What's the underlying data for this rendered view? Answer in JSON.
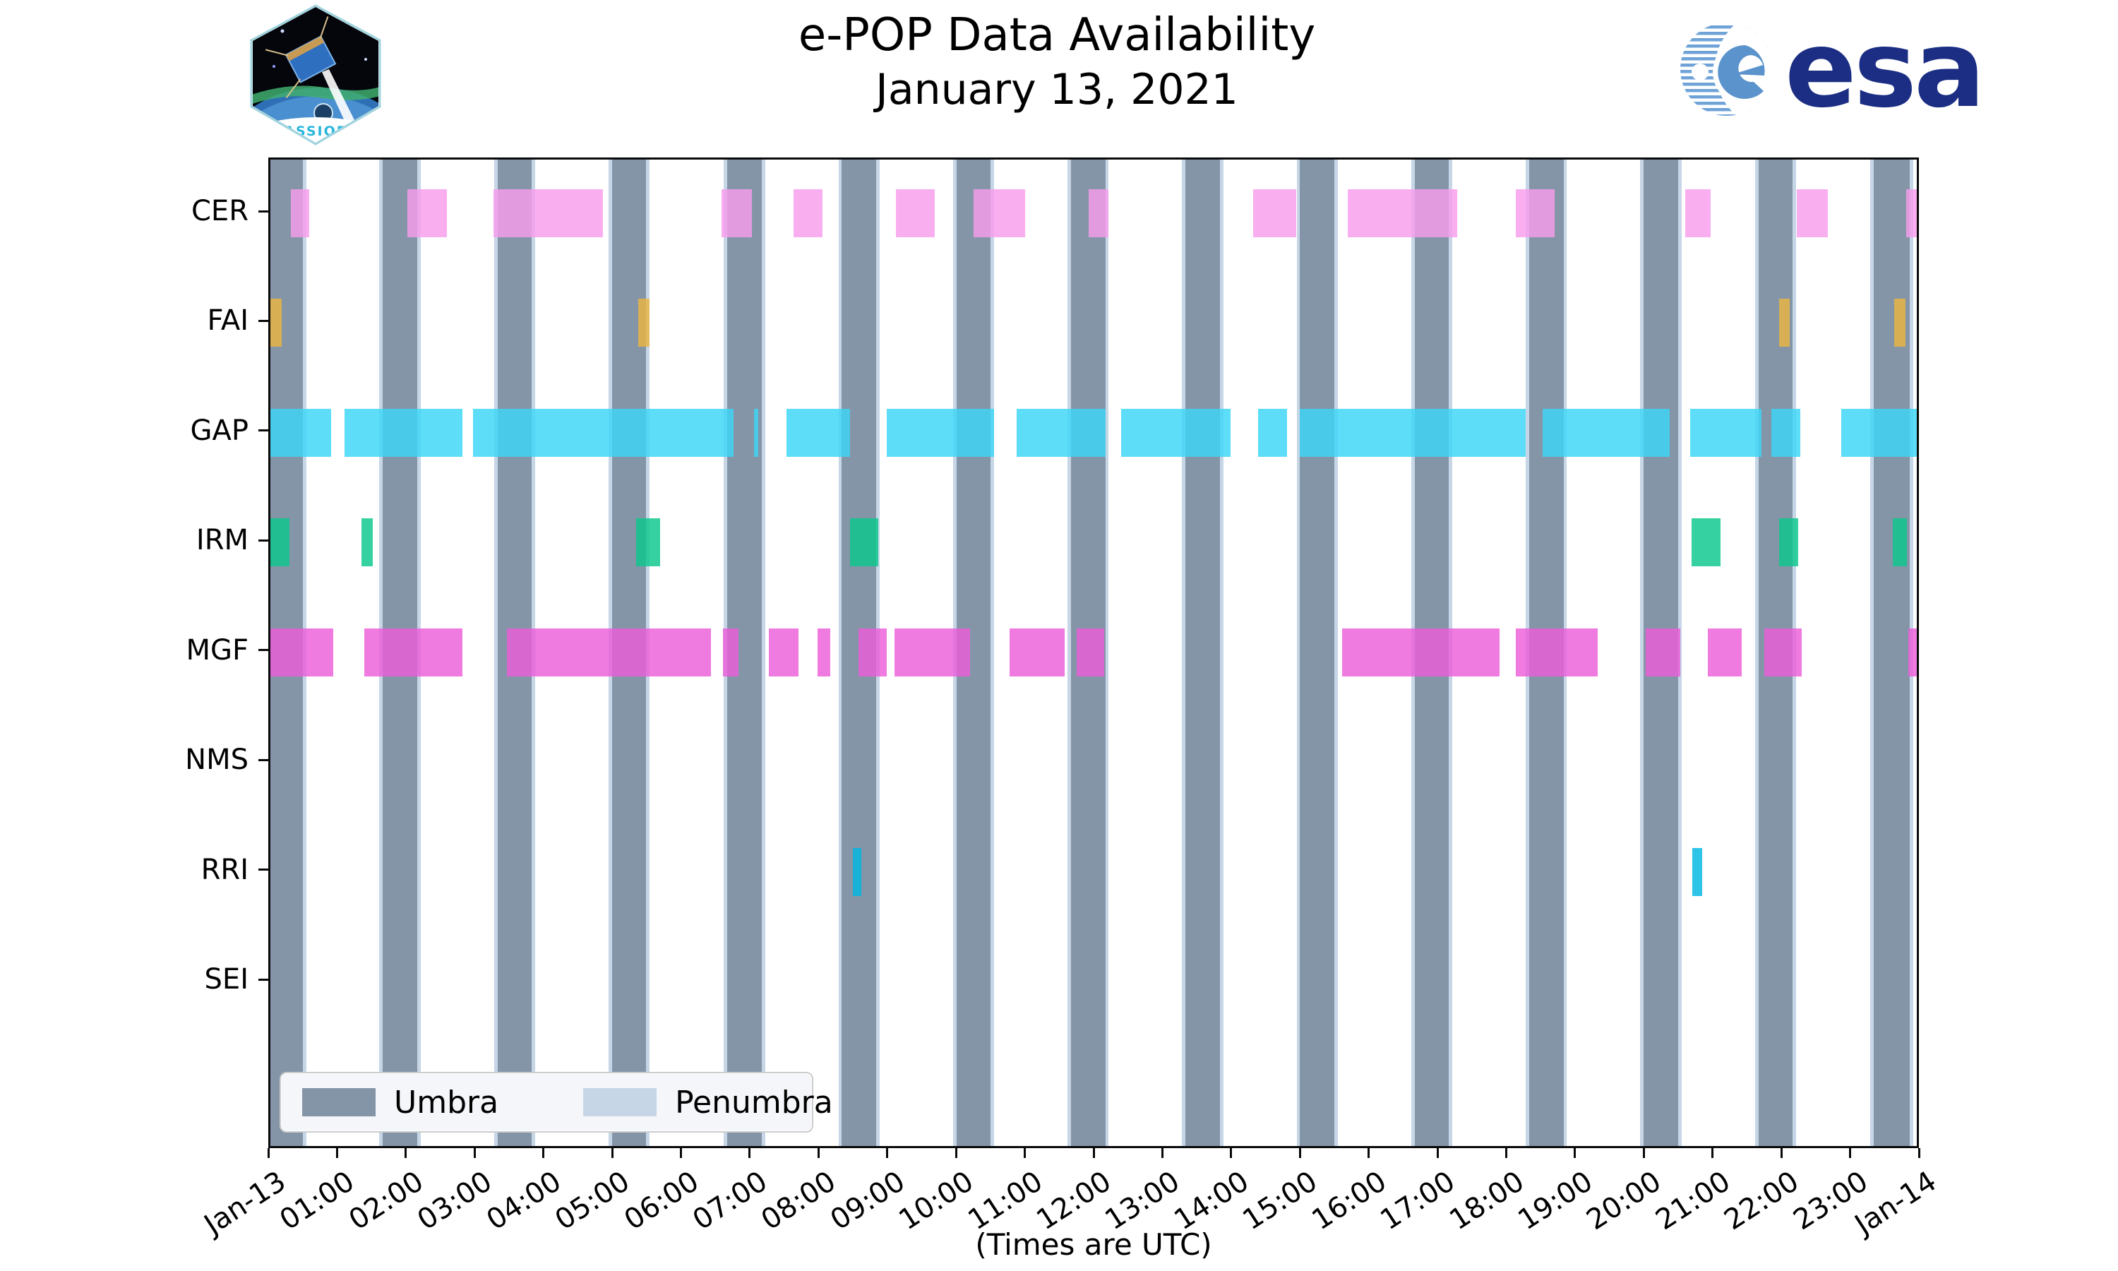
{
  "header": {
    "title_line1": "e-POP Data Availability",
    "title_line2": "January 13, 2021",
    "cassiope_label": "CASSIOPE",
    "esa_label": "esa"
  },
  "chart_data": {
    "type": "gantt",
    "title": "e-POP Data Availability — January 13, 2021",
    "xlabel": "(Times are UTC)",
    "x_range_hours": [
      0,
      24
    ],
    "x_tick_labels": [
      "Jan-13",
      "01:00",
      "02:00",
      "03:00",
      "04:00",
      "05:00",
      "06:00",
      "07:00",
      "08:00",
      "09:00",
      "10:00",
      "11:00",
      "12:00",
      "13:00",
      "14:00",
      "15:00",
      "16:00",
      "17:00",
      "18:00",
      "19:00",
      "20:00",
      "21:00",
      "22:00",
      "23:00",
      "Jan-14"
    ],
    "legend_position": "lower-left",
    "grid": false,
    "rows": [
      {
        "label": "CER",
        "color": "#f89ced",
        "segments": [
          [
            0.3,
            0.57
          ],
          [
            2.0,
            2.57
          ],
          [
            3.25,
            4.85
          ],
          [
            6.58,
            7.02
          ],
          [
            7.63,
            8.05
          ],
          [
            9.12,
            9.68
          ],
          [
            10.25,
            11.0
          ],
          [
            11.93,
            12.22
          ],
          [
            14.33,
            14.95
          ],
          [
            15.7,
            17.3
          ],
          [
            18.15,
            18.72
          ],
          [
            20.62,
            21.0
          ],
          [
            22.25,
            22.7
          ],
          [
            23.85,
            24.0
          ]
        ]
      },
      {
        "label": "FAI",
        "color": "#eab641",
        "segments": [
          [
            0.0,
            0.16
          ],
          [
            5.36,
            5.53
          ],
          [
            21.99,
            22.15
          ],
          [
            23.67,
            23.84
          ]
        ]
      },
      {
        "label": "GAP",
        "color": "#3bd5f6",
        "segments": [
          [
            0.0,
            0.88
          ],
          [
            1.08,
            2.8
          ],
          [
            2.95,
            6.75
          ],
          [
            7.05,
            7.11
          ],
          [
            7.52,
            8.45
          ],
          [
            8.98,
            10.55
          ],
          [
            10.88,
            12.18
          ],
          [
            12.4,
            14.0
          ],
          [
            14.4,
            14.82
          ],
          [
            15.0,
            18.3
          ],
          [
            18.55,
            20.4
          ],
          [
            20.7,
            21.74
          ],
          [
            21.88,
            22.3
          ],
          [
            22.9,
            24.0
          ]
        ]
      },
      {
        "label": "IRM",
        "color": "#0ac78c",
        "segments": [
          [
            0.0,
            0.28
          ],
          [
            1.33,
            1.49
          ],
          [
            5.33,
            5.68
          ],
          [
            8.45,
            8.86
          ],
          [
            20.72,
            21.14
          ],
          [
            21.99,
            22.27
          ],
          [
            23.65,
            23.86
          ]
        ]
      },
      {
        "label": "MGF",
        "color": "#eb5dd9",
        "segments": [
          [
            0.0,
            0.92
          ],
          [
            1.37,
            2.8
          ],
          [
            3.45,
            6.42
          ],
          [
            6.6,
            6.82
          ],
          [
            7.27,
            7.7
          ],
          [
            7.98,
            8.16
          ],
          [
            8.57,
            8.98
          ],
          [
            9.1,
            10.2
          ],
          [
            10.78,
            11.58
          ],
          [
            11.75,
            12.15
          ],
          [
            15.62,
            17.92
          ],
          [
            18.15,
            19.35
          ],
          [
            20.05,
            20.55
          ],
          [
            20.95,
            21.45
          ],
          [
            21.78,
            22.32
          ],
          [
            23.88,
            24.0
          ]
        ]
      },
      {
        "label": "NMS",
        "color": "#bbbbbb",
        "segments": []
      },
      {
        "label": "RRI",
        "color": "#00b7e3",
        "segments": [
          [
            8.49,
            8.61
          ],
          [
            20.73,
            20.87
          ]
        ]
      },
      {
        "label": "SEI",
        "color": "#bbbbbb",
        "segments": []
      }
    ],
    "umbra": {
      "label": "Umbra",
      "color": "#8595a8",
      "spans": [
        [
          0.0,
          0.47
        ],
        [
          1.64,
          2.14
        ],
        [
          3.31,
          3.81
        ],
        [
          4.98,
          5.48
        ],
        [
          6.66,
          7.16
        ],
        [
          8.33,
          8.83
        ],
        [
          10.0,
          10.5
        ],
        [
          11.67,
          12.17
        ],
        [
          13.34,
          13.84
        ],
        [
          15.01,
          15.51
        ],
        [
          16.68,
          17.18
        ],
        [
          18.35,
          18.85
        ],
        [
          20.02,
          20.52
        ],
        [
          21.69,
          22.19
        ],
        [
          23.37,
          23.9
        ]
      ]
    },
    "penumbra": {
      "label": "Penumbra",
      "color": "#c6d6e6",
      "edge_width_hours": 0.05
    }
  }
}
